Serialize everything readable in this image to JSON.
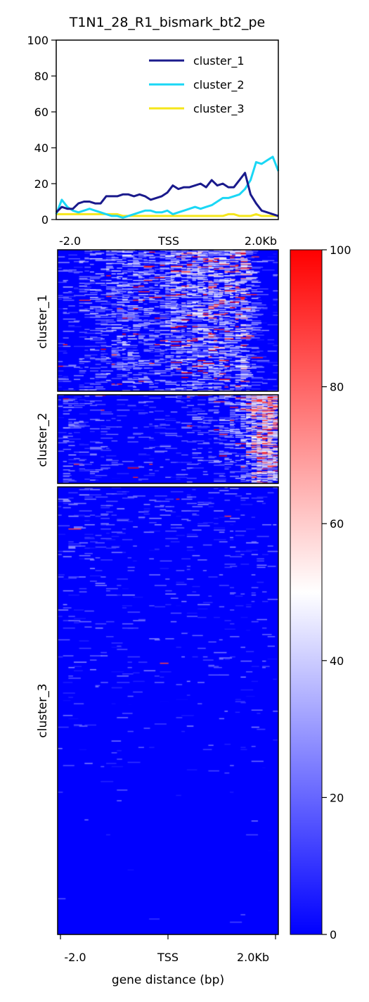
{
  "chart_data": [
    {
      "type": "line",
      "title": "T1N1_28_R1_bismark_bt2_pe",
      "xlabel": "",
      "ylabel": "",
      "ylim": [
        0,
        100
      ],
      "y_ticks": [
        0,
        20,
        40,
        60,
        80,
        100
      ],
      "x_tick_labels": [
        "-2.0",
        "TSS",
        "2.0Kb"
      ],
      "legend_position": "top-right",
      "grid": false,
      "series": [
        {
          "name": "cluster_1",
          "color": "#1a1a8c",
          "values": [
            4,
            7,
            6,
            6,
            9,
            10,
            10,
            9,
            9,
            13,
            13,
            13,
            14,
            14,
            13,
            14,
            13,
            11,
            12,
            13,
            15,
            19,
            17,
            18,
            18,
            19,
            20,
            18,
            22,
            19,
            20,
            18,
            18,
            22,
            26,
            14,
            9,
            5,
            4,
            3,
            2
          ]
        },
        {
          "name": "cluster_2",
          "color": "#1ad7f5",
          "values": [
            3,
            11,
            7,
            5,
            4,
            5,
            6,
            5,
            4,
            3,
            2,
            2,
            1,
            2,
            3,
            4,
            5,
            5,
            4,
            4,
            5,
            3,
            4,
            5,
            6,
            7,
            6,
            7,
            8,
            10,
            12,
            12,
            13,
            14,
            17,
            22,
            32,
            31,
            33,
            35,
            27
          ]
        },
        {
          "name": "cluster_3",
          "color": "#f5e61a",
          "values": [
            3,
            3,
            3,
            3,
            3,
            3,
            3,
            3,
            3,
            3,
            3,
            3,
            2,
            2,
            2,
            2,
            2,
            2,
            2,
            2,
            2,
            2,
            2,
            2,
            2,
            2,
            2,
            2,
            2,
            2,
            2,
            3,
            3,
            2,
            2,
            2,
            3,
            2,
            2,
            2,
            2
          ]
        }
      ]
    },
    {
      "type": "heatmap",
      "xlabel": "gene distance (bp)",
      "x_tick_labels": [
        "-2.0",
        "TSS",
        "2.0Kb"
      ],
      "clusters": [
        {
          "label": "cluster_1",
          "mean_level_profile": "cluster_1"
        },
        {
          "label": "cluster_2",
          "mean_level_profile": "cluster_2"
        },
        {
          "label": "cluster_3",
          "mean_level_profile": "cluster_3"
        }
      ],
      "colorbar": {
        "min": 0,
        "max": 100,
        "ticks": [
          0,
          20,
          40,
          60,
          80,
          100
        ],
        "colors": [
          "#0000ff",
          "#ffffff",
          "#ff0000"
        ]
      }
    }
  ]
}
